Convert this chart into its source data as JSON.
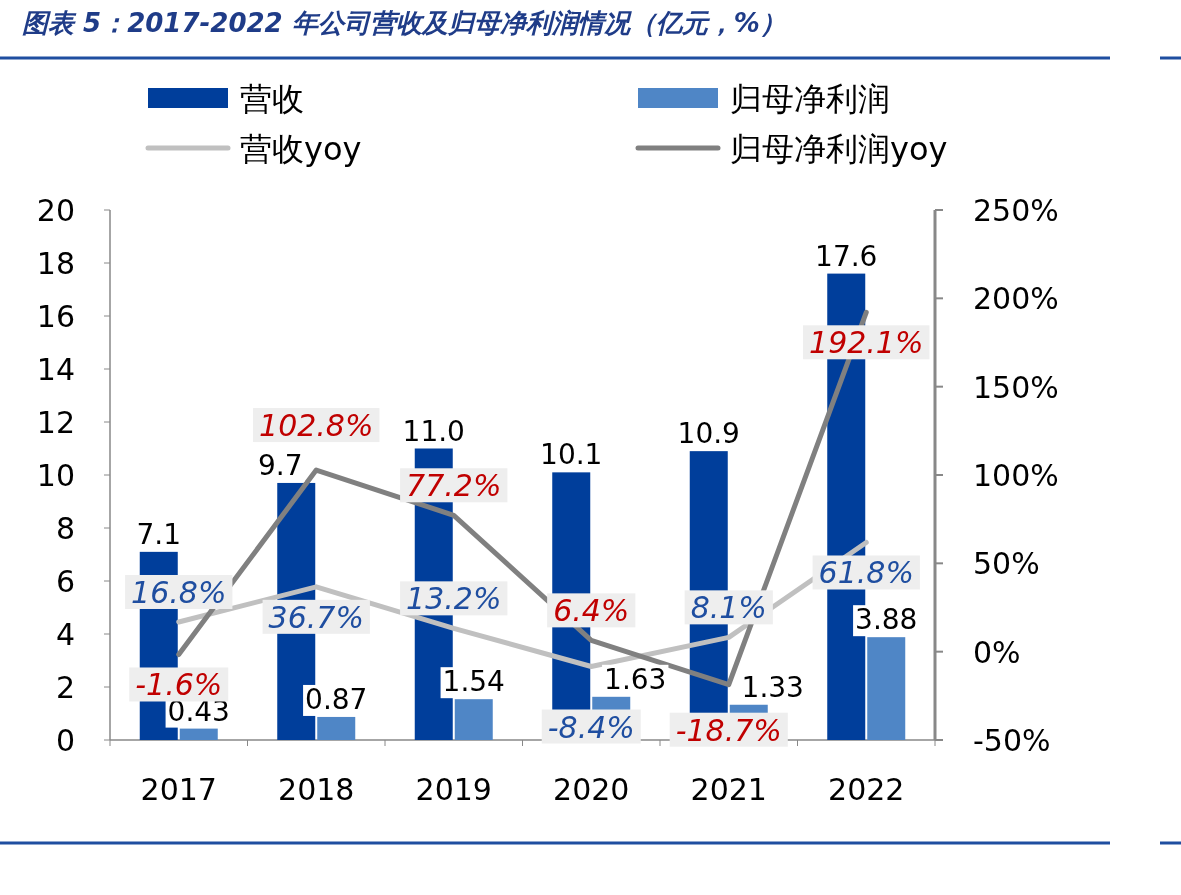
{
  "chart_data": {
    "type": "bar",
    "title": "图表 5：2017-2022 年公司营收及归母净利润情况（亿元，%）",
    "categories": [
      "2017",
      "2018",
      "2019",
      "2020",
      "2021",
      "2022"
    ],
    "ylim": [
      0,
      20
    ],
    "yticks": [
      0,
      2,
      4,
      6,
      8,
      10,
      12,
      14,
      16,
      18,
      20
    ],
    "y2lim": [
      -50,
      250
    ],
    "y2ticks": [
      {
        "value": -50,
        "label": "-50%"
      },
      {
        "value": 0,
        "label": "0%"
      },
      {
        "value": 50,
        "label": "50%"
      },
      {
        "value": 100,
        "label": "100%"
      },
      {
        "value": 150,
        "label": "150%"
      },
      {
        "value": 200,
        "label": "200%"
      },
      {
        "value": 250,
        "label": "250%"
      }
    ],
    "legend": "top",
    "grid": false,
    "series": [
      {
        "name": "营收",
        "color": "#003e9b",
        "values": [
          7.1,
          9.7,
          11.0,
          10.1,
          10.9,
          17.6
        ],
        "value_labels": [
          "7.1",
          "9.7",
          "11.0",
          "10.1",
          "10.9",
          "17.6"
        ]
      },
      {
        "name": "归母净利润",
        "color": "#4f86c6",
        "values": [
          0.43,
          0.87,
          1.54,
          1.63,
          1.33,
          3.88
        ],
        "value_labels": [
          "0.43",
          "0.87",
          "1.54",
          "1.63",
          "1.33",
          "3.88"
        ]
      },
      {
        "name": "营收yoy",
        "type": "line",
        "axis": "y2",
        "color": "#c0c0c0",
        "values": [
          16.8,
          36.7,
          13.2,
          -8.4,
          8.1,
          61.8
        ],
        "value_labels": [
          "16.8%",
          "36.7%",
          "13.2%",
          "-8.4%",
          "8.1%",
          "61.8%"
        ]
      },
      {
        "name": "归母净利润yoy",
        "type": "line",
        "axis": "y2",
        "color": "#808080",
        "values": [
          -1.6,
          102.8,
          77.2,
          6.4,
          -18.7,
          192.1
        ],
        "value_labels": [
          "-1.6%",
          "102.8%",
          "77.2%",
          "6.4%",
          "-18.7%",
          "192.1%"
        ]
      }
    ]
  }
}
